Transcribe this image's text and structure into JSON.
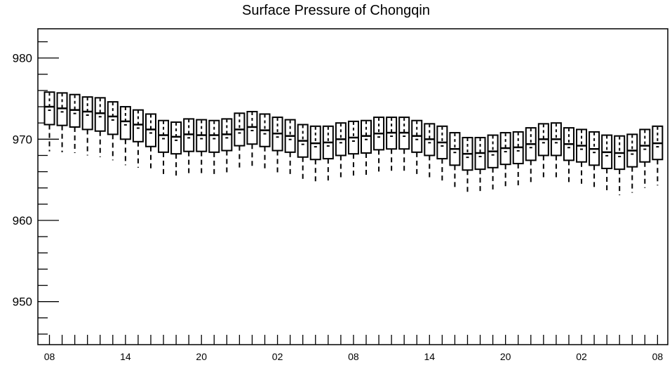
{
  "chart_data": {
    "type": "box",
    "title": "Surface Pressure of Chongqin",
    "xlabel": "",
    "ylabel": "",
    "ylim": [
      944.7,
      983.6
    ],
    "y_ticks": [
      950,
      960,
      970,
      980
    ],
    "x_tick_labels": [
      "08",
      "14",
      "20",
      "02",
      "08",
      "14",
      "20",
      "02",
      "08"
    ],
    "x_tick_positions": [
      0,
      6,
      12,
      18,
      24,
      30,
      36,
      42,
      48
    ],
    "grid": false,
    "boxes": [
      {
        "x": 0,
        "whisker_low": 968.5,
        "q1": 971.8,
        "median": 974.0,
        "q3": 975.8,
        "whisker_high": 975.8
      },
      {
        "x": 1,
        "whisker_low": 968.4,
        "q1": 971.7,
        "median": 973.8,
        "q3": 975.7,
        "whisker_high": 975.7
      },
      {
        "x": 2,
        "whisker_low": 968.3,
        "q1": 971.5,
        "median": 973.6,
        "q3": 975.5,
        "whisker_high": 975.5
      },
      {
        "x": 3,
        "whisker_low": 968.0,
        "q1": 971.2,
        "median": 973.4,
        "q3": 975.2,
        "whisker_high": 975.2
      },
      {
        "x": 4,
        "whisker_low": 967.8,
        "q1": 971.0,
        "median": 973.2,
        "q3": 975.1,
        "whisker_high": 975.1
      },
      {
        "x": 5,
        "whisker_low": 967.4,
        "q1": 970.6,
        "median": 972.8,
        "q3": 974.6,
        "whisker_high": 974.6
      },
      {
        "x": 6,
        "whisker_low": 966.8,
        "q1": 970.0,
        "median": 972.2,
        "q3": 974.0,
        "whisker_high": 974.0
      },
      {
        "x": 7,
        "whisker_low": 966.5,
        "q1": 969.7,
        "median": 971.8,
        "q3": 973.6,
        "whisker_high": 973.6
      },
      {
        "x": 8,
        "whisker_low": 966.0,
        "q1": 969.1,
        "median": 971.2,
        "q3": 973.1,
        "whisker_high": 973.1
      },
      {
        "x": 9,
        "whisker_low": 965.4,
        "q1": 968.4,
        "median": 970.5,
        "q3": 972.3,
        "whisker_high": 972.3
      },
      {
        "x": 10,
        "whisker_low": 965.1,
        "q1": 968.2,
        "median": 970.3,
        "q3": 972.1,
        "whisker_high": 972.1
      },
      {
        "x": 11,
        "whisker_low": 965.4,
        "q1": 968.5,
        "median": 970.6,
        "q3": 972.5,
        "whisker_high": 972.5
      },
      {
        "x": 12,
        "whisker_low": 965.4,
        "q1": 968.5,
        "median": 970.5,
        "q3": 972.4,
        "whisker_high": 972.4
      },
      {
        "x": 13,
        "whisker_low": 965.3,
        "q1": 968.4,
        "median": 970.5,
        "q3": 972.3,
        "whisker_high": 972.3
      },
      {
        "x": 14,
        "whisker_low": 965.5,
        "q1": 968.6,
        "median": 970.6,
        "q3": 972.5,
        "whisker_high": 972.5
      },
      {
        "x": 15,
        "whisker_low": 966.2,
        "q1": 969.2,
        "median": 971.2,
        "q3": 973.2,
        "whisker_high": 973.2
      },
      {
        "x": 16,
        "whisker_low": 966.3,
        "q1": 969.4,
        "median": 971.5,
        "q3": 973.4,
        "whisker_high": 973.4
      },
      {
        "x": 17,
        "whisker_low": 966.1,
        "q1": 969.1,
        "median": 971.1,
        "q3": 973.1,
        "whisker_high": 973.1
      },
      {
        "x": 18,
        "whisker_low": 965.6,
        "q1": 968.6,
        "median": 970.7,
        "q3": 972.7,
        "whisker_high": 972.7
      },
      {
        "x": 19,
        "whisker_low": 965.3,
        "q1": 968.4,
        "median": 970.4,
        "q3": 972.4,
        "whisker_high": 972.4
      },
      {
        "x": 20,
        "whisker_low": 964.7,
        "q1": 967.8,
        "median": 969.8,
        "q3": 971.8,
        "whisker_high": 971.8
      },
      {
        "x": 21,
        "whisker_low": 964.4,
        "q1": 967.5,
        "median": 969.5,
        "q3": 971.6,
        "whisker_high": 971.6
      },
      {
        "x": 22,
        "whisker_low": 964.6,
        "q1": 967.6,
        "median": 969.6,
        "q3": 971.6,
        "whisker_high": 971.6
      },
      {
        "x": 23,
        "whisker_low": 964.9,
        "q1": 968.0,
        "median": 970.0,
        "q3": 972.0,
        "whisker_high": 972.0
      },
      {
        "x": 24,
        "whisker_low": 965.1,
        "q1": 968.2,
        "median": 970.2,
        "q3": 972.2,
        "whisker_high": 972.2
      },
      {
        "x": 25,
        "whisker_low": 965.3,
        "q1": 968.3,
        "median": 970.4,
        "q3": 972.3,
        "whisker_high": 972.3
      },
      {
        "x": 26,
        "whisker_low": 965.6,
        "q1": 968.7,
        "median": 970.7,
        "q3": 972.7,
        "whisker_high": 972.7
      },
      {
        "x": 27,
        "whisker_low": 965.7,
        "q1": 968.8,
        "median": 970.8,
        "q3": 972.7,
        "whisker_high": 972.7
      },
      {
        "x": 28,
        "whisker_low": 965.7,
        "q1": 968.8,
        "median": 970.8,
        "q3": 972.7,
        "whisker_high": 972.7
      },
      {
        "x": 29,
        "whisker_low": 965.3,
        "q1": 968.4,
        "median": 970.4,
        "q3": 972.3,
        "whisker_high": 972.3
      },
      {
        "x": 30,
        "whisker_low": 964.9,
        "q1": 968.0,
        "median": 970.0,
        "q3": 971.9,
        "whisker_high": 971.9
      },
      {
        "x": 31,
        "whisker_low": 964.5,
        "q1": 967.6,
        "median": 969.6,
        "q3": 971.6,
        "whisker_high": 971.6
      },
      {
        "x": 32,
        "whisker_low": 963.7,
        "q1": 966.8,
        "median": 968.8,
        "q3": 970.8,
        "whisker_high": 970.8
      },
      {
        "x": 33,
        "whisker_low": 963.1,
        "q1": 966.2,
        "median": 968.2,
        "q3": 970.2,
        "whisker_high": 970.2
      },
      {
        "x": 34,
        "whisker_low": 963.2,
        "q1": 966.3,
        "median": 968.3,
        "q3": 970.2,
        "whisker_high": 970.2
      },
      {
        "x": 35,
        "whisker_low": 963.5,
        "q1": 966.5,
        "median": 968.5,
        "q3": 970.5,
        "whisker_high": 970.5
      },
      {
        "x": 36,
        "whisker_low": 963.8,
        "q1": 966.9,
        "median": 968.9,
        "q3": 970.8,
        "whisker_high": 970.8
      },
      {
        "x": 37,
        "whisker_low": 963.9,
        "q1": 967.0,
        "median": 969.0,
        "q3": 970.9,
        "whisker_high": 970.9
      },
      {
        "x": 38,
        "whisker_low": 964.3,
        "q1": 967.4,
        "median": 969.4,
        "q3": 971.4,
        "whisker_high": 971.4
      },
      {
        "x": 39,
        "whisker_low": 964.9,
        "q1": 968.0,
        "median": 970.0,
        "q3": 971.9,
        "whisker_high": 971.9
      },
      {
        "x": 40,
        "whisker_low": 965.0,
        "q1": 968.0,
        "median": 970.0,
        "q3": 972.0,
        "whisker_high": 972.0
      },
      {
        "x": 41,
        "whisker_low": 964.5,
        "q1": 967.4,
        "median": 969.4,
        "q3": 971.4,
        "whisker_high": 971.4
      },
      {
        "x": 42,
        "whisker_low": 964.1,
        "q1": 967.2,
        "median": 969.2,
        "q3": 971.2,
        "whisker_high": 971.2
      },
      {
        "x": 43,
        "whisker_low": 963.7,
        "q1": 966.8,
        "median": 968.8,
        "q3": 970.9,
        "whisker_high": 970.9
      },
      {
        "x": 44,
        "whisker_low": 963.3,
        "q1": 966.4,
        "median": 968.4,
        "q3": 970.5,
        "whisker_high": 970.5
      },
      {
        "x": 45,
        "whisker_low": 963.1,
        "q1": 966.3,
        "median": 968.3,
        "q3": 970.4,
        "whisker_high": 970.4
      },
      {
        "x": 46,
        "whisker_low": 963.4,
        "q1": 966.6,
        "median": 968.6,
        "q3": 970.6,
        "whisker_high": 970.6
      },
      {
        "x": 47,
        "whisker_low": 964.0,
        "q1": 967.2,
        "median": 969.2,
        "q3": 971.2,
        "whisker_high": 971.2
      },
      {
        "x": 48,
        "whisker_low": 964.3,
        "q1": 967.5,
        "median": 969.5,
        "q3": 971.6,
        "whisker_high": 971.6
      }
    ]
  }
}
